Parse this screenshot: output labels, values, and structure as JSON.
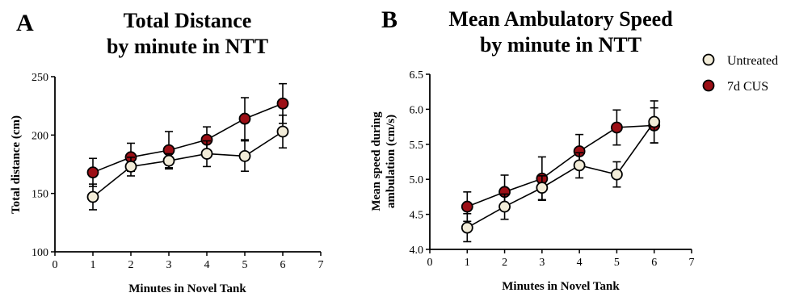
{
  "chart_data": [
    {
      "type": "line",
      "panel_label": "A",
      "title_lines": [
        "Total Distance",
        "by minute in NTT"
      ],
      "xlabel": "Minutes in Novel Tank",
      "ylabel": "Total distance (cm)",
      "xlim": [
        0,
        7
      ],
      "ylim": [
        100,
        250
      ],
      "x_ticks": [
        "0",
        "1",
        "2",
        "3",
        "4",
        "5",
        "6",
        "7"
      ],
      "y_ticks": [
        "100",
        "150",
        "200",
        "250"
      ],
      "x": [
        1,
        2,
        3,
        4,
        5,
        6
      ],
      "series": [
        {
          "name": "Untreated",
          "color": "#f2ecd8",
          "values": [
            147,
            173,
            178,
            184,
            182,
            203
          ],
          "error": [
            11,
            8,
            6,
            11,
            13,
            14
          ]
        },
        {
          "name": "7d CUS",
          "color": "#9c0f16",
          "values": [
            168,
            181,
            187,
            196,
            214,
            227
          ],
          "error": [
            12,
            12,
            16,
            11,
            18,
            17
          ]
        }
      ]
    },
    {
      "type": "line",
      "panel_label": "B",
      "title_lines": [
        "Mean Ambulatory Speed",
        "by minute in NTT"
      ],
      "xlabel": "Minutes in Novel Tank",
      "ylabel_lines": [
        "Mean speed during",
        "ambulation (cm/s)"
      ],
      "xlim": [
        0,
        7
      ],
      "ylim": [
        4.0,
        6.5
      ],
      "x_ticks": [
        "0",
        "1",
        "2",
        "3",
        "4",
        "5",
        "6",
        "7"
      ],
      "y_ticks": [
        "4.0",
        "4.5",
        "5.0",
        "5.5",
        "6.0",
        "6.5"
      ],
      "x": [
        1,
        2,
        3,
        4,
        5,
        6
      ],
      "series": [
        {
          "name": "Untreated",
          "color": "#f2ecd8",
          "values": [
            4.31,
            4.61,
            4.88,
            5.2,
            5.07,
            5.82
          ],
          "error": [
            0.2,
            0.18,
            0.17,
            0.18,
            0.18,
            0.3
          ]
        },
        {
          "name": "7d CUS",
          "color": "#9c0f16",
          "values": [
            4.61,
            4.82,
            5.01,
            5.4,
            5.74,
            5.77
          ],
          "error": [
            0.21,
            0.24,
            0.31,
            0.24,
            0.25,
            0.25
          ]
        }
      ]
    }
  ],
  "legend": [
    {
      "label": "Untreated",
      "color": "#f2ecd8"
    },
    {
      "label": "7d CUS",
      "color": "#9c0f16"
    }
  ]
}
